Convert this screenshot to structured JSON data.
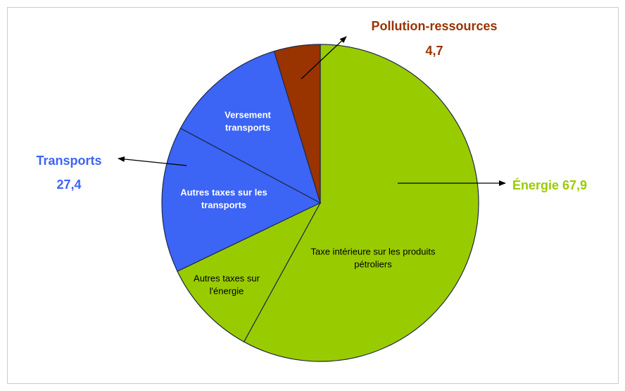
{
  "chart_data": {
    "type": "pie",
    "categories": [
      "Taxe intérieure sur les produits pétroliers",
      "Autres taxes sur l'énergie",
      "Autres taxes sur les transports",
      "Versement transports",
      null
    ],
    "values": [
      58.0,
      9.9,
      14.9,
      12.5,
      4.7
    ],
    "colors": [
      "#99cc00",
      "#99cc00",
      "#3c64f5",
      "#3c64f5",
      "#993300"
    ],
    "groups": [
      {
        "name": "Énergie",
        "value": 67.9,
        "value_label": "67,9",
        "color": "#99cc00"
      },
      {
        "name": "Transports",
        "value": 27.4,
        "value_label": "27,4",
        "color": "#3c64f5"
      },
      {
        "name": "Pollution-ressources",
        "value": 4.7,
        "value_label": "4,7",
        "color": "#993300"
      }
    ]
  }
}
